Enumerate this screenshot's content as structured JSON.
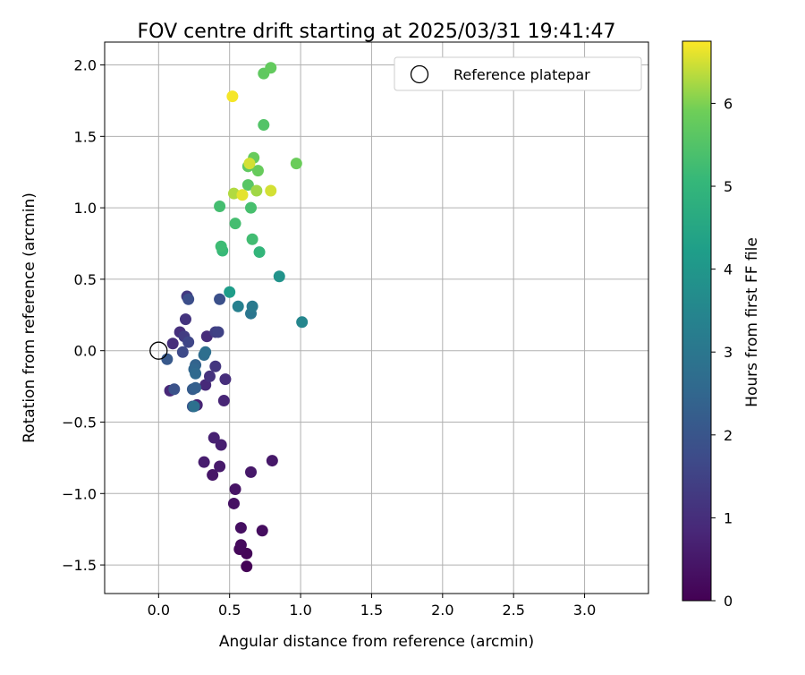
{
  "chart_data": {
    "type": "scatter",
    "title": "FOV centre drift starting at 2025/03/31 19:41:47",
    "xlabel": "Angular distance from reference (arcmin)",
    "ylabel": "Rotation from reference (arcmin)",
    "xlim": [
      -0.38,
      3.45
    ],
    "ylim": [
      -1.7,
      2.16
    ],
    "xticks": [
      0.0,
      0.5,
      1.0,
      1.5,
      2.0,
      2.5,
      3.0
    ],
    "xtick_labels": [
      "0.0",
      "0.5",
      "1.0",
      "1.5",
      "2.0",
      "2.5",
      "3.0"
    ],
    "yticks": [
      -1.5,
      -1.0,
      -0.5,
      0.0,
      0.5,
      1.0,
      1.5,
      2.0
    ],
    "ytick_labels": [
      "−1.5",
      "−1.0",
      "−0.5",
      "0.0",
      "0.5",
      "1.0",
      "1.5",
      "2.0"
    ],
    "grid": true,
    "legend": {
      "position": "top-right",
      "entries": [
        "Reference platepar"
      ]
    },
    "reference_point": {
      "x": 0.0,
      "y": 0.0,
      "label": "Reference platepar"
    },
    "colorbar": {
      "label": "Hours from first FF file",
      "range": [
        0,
        6.75
      ],
      "ticks": [
        0,
        1,
        2,
        3,
        4,
        5,
        6
      ],
      "tick_labels": [
        "0",
        "1",
        "2",
        "3",
        "4",
        "5",
        "6"
      ],
      "colormap": "viridis"
    },
    "points": [
      {
        "x": 0.62,
        "y": -1.51,
        "h": 0.05
      },
      {
        "x": 0.62,
        "y": -1.42,
        "h": 0.1
      },
      {
        "x": 0.57,
        "y": -1.39,
        "h": 0.15
      },
      {
        "x": 0.58,
        "y": -1.36,
        "h": 0.2
      },
      {
        "x": 0.73,
        "y": -1.26,
        "h": 0.25
      },
      {
        "x": 0.58,
        "y": -1.24,
        "h": 0.3
      },
      {
        "x": 0.53,
        "y": -1.07,
        "h": 0.35
      },
      {
        "x": 0.54,
        "y": -0.97,
        "h": 0.4
      },
      {
        "x": 0.38,
        "y": -0.87,
        "h": 0.45
      },
      {
        "x": 0.65,
        "y": -0.85,
        "h": 0.5
      },
      {
        "x": 0.43,
        "y": -0.81,
        "h": 0.55
      },
      {
        "x": 0.32,
        "y": -0.78,
        "h": 0.6
      },
      {
        "x": 0.8,
        "y": -0.77,
        "h": 0.5
      },
      {
        "x": 0.44,
        "y": -0.66,
        "h": 0.65
      },
      {
        "x": 0.39,
        "y": -0.61,
        "h": 0.7
      },
      {
        "x": 0.27,
        "y": -0.38,
        "h": 0.75
      },
      {
        "x": 0.46,
        "y": -0.35,
        "h": 0.8
      },
      {
        "x": 0.08,
        "y": -0.28,
        "h": 0.85
      },
      {
        "x": 0.33,
        "y": -0.24,
        "h": 0.9
      },
      {
        "x": 0.47,
        "y": -0.2,
        "h": 1.0
      },
      {
        "x": 0.36,
        "y": -0.18,
        "h": 1.1
      },
      {
        "x": 0.4,
        "y": -0.11,
        "h": 1.2
      },
      {
        "x": 0.34,
        "y": 0.1,
        "h": 0.95
      },
      {
        "x": 0.1,
        "y": 0.05,
        "h": 1.0
      },
      {
        "x": 0.15,
        "y": 0.13,
        "h": 1.05
      },
      {
        "x": 0.19,
        "y": 0.22,
        "h": 1.15
      },
      {
        "x": 0.2,
        "y": 0.38,
        "h": 1.25
      },
      {
        "x": 0.18,
        "y": 0.1,
        "h": 1.35
      },
      {
        "x": 0.4,
        "y": 0.13,
        "h": 1.4
      },
      {
        "x": 0.42,
        "y": 0.13,
        "h": 1.5
      },
      {
        "x": 0.21,
        "y": 0.06,
        "h": 1.6
      },
      {
        "x": 0.17,
        "y": -0.01,
        "h": 1.7
      },
      {
        "x": 0.21,
        "y": 0.36,
        "h": 1.8
      },
      {
        "x": 0.43,
        "y": 0.36,
        "h": 1.85
      },
      {
        "x": 0.11,
        "y": -0.27,
        "h": 1.9
      },
      {
        "x": 0.24,
        "y": -0.39,
        "h": 2.0
      },
      {
        "x": 0.06,
        "y": -0.06,
        "h": 2.1
      },
      {
        "x": 0.24,
        "y": -0.27,
        "h": 2.2
      },
      {
        "x": 0.26,
        "y": -0.26,
        "h": 2.3
      },
      {
        "x": 0.26,
        "y": -0.1,
        "h": 2.4
      },
      {
        "x": 0.25,
        "y": -0.13,
        "h": 2.5
      },
      {
        "x": 0.26,
        "y": -0.16,
        "h": 2.6
      },
      {
        "x": 0.32,
        "y": -0.03,
        "h": 2.7
      },
      {
        "x": 0.33,
        "y": -0.01,
        "h": 2.75
      },
      {
        "x": 0.25,
        "y": -0.39,
        "h": 2.8
      },
      {
        "x": 0.65,
        "y": 0.26,
        "h": 3.0
      },
      {
        "x": 0.66,
        "y": 0.31,
        "h": 3.1
      },
      {
        "x": 0.56,
        "y": 0.31,
        "h": 3.3
      },
      {
        "x": 1.01,
        "y": 0.2,
        "h": 3.5
      },
      {
        "x": 0.85,
        "y": 0.52,
        "h": 3.9
      },
      {
        "x": 0.5,
        "y": 0.41,
        "h": 4.2
      },
      {
        "x": 0.71,
        "y": 0.69,
        "h": 5.0
      },
      {
        "x": 0.45,
        "y": 0.7,
        "h": 5.1
      },
      {
        "x": 0.44,
        "y": 0.73,
        "h": 5.2
      },
      {
        "x": 0.66,
        "y": 0.78,
        "h": 5.25
      },
      {
        "x": 0.54,
        "y": 0.89,
        "h": 5.3
      },
      {
        "x": 0.43,
        "y": 1.01,
        "h": 5.3
      },
      {
        "x": 0.65,
        "y": 1.0,
        "h": 5.35
      },
      {
        "x": 0.74,
        "y": 1.58,
        "h": 5.5
      },
      {
        "x": 0.63,
        "y": 1.16,
        "h": 5.6
      },
      {
        "x": 0.74,
        "y": 1.94,
        "h": 5.7
      },
      {
        "x": 0.79,
        "y": 1.98,
        "h": 5.75
      },
      {
        "x": 0.63,
        "y": 1.29,
        "h": 5.7
      },
      {
        "x": 0.67,
        "y": 1.35,
        "h": 5.8
      },
      {
        "x": 0.7,
        "y": 1.26,
        "h": 5.8
      },
      {
        "x": 0.97,
        "y": 1.31,
        "h": 5.85
      },
      {
        "x": 0.69,
        "y": 1.12,
        "h": 6.2
      },
      {
        "x": 0.53,
        "y": 1.1,
        "h": 6.3
      },
      {
        "x": 0.64,
        "y": 1.31,
        "h": 6.5
      },
      {
        "x": 0.79,
        "y": 1.12,
        "h": 6.5
      },
      {
        "x": 0.59,
        "y": 1.09,
        "h": 6.6
      },
      {
        "x": 0.52,
        "y": 1.78,
        "h": 6.7
      }
    ]
  }
}
